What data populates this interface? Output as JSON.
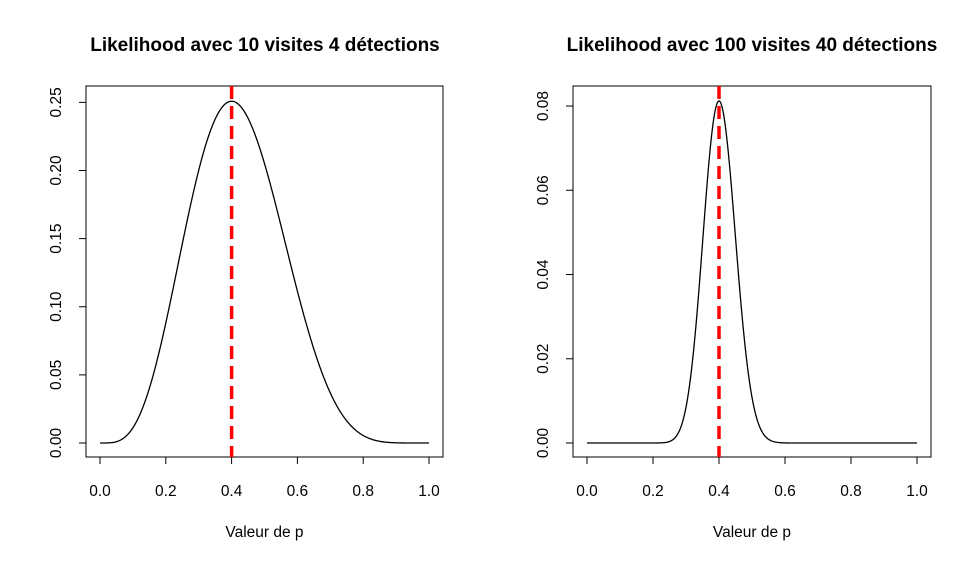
{
  "chart_data": [
    {
      "type": "line",
      "title": "Likelihood avec 10 visites 4 détections",
      "xlabel": "Valeur de p",
      "ylabel": "",
      "xlim": [
        0,
        1
      ],
      "ylim": [
        0,
        0.251
      ],
      "x_ticks": [
        "0.0",
        "0.2",
        "0.4",
        "0.6",
        "0.8",
        "1.0"
      ],
      "y_ticks": [
        "0.00",
        "0.05",
        "0.10",
        "0.15",
        "0.20",
        "0.25"
      ],
      "binomial": {
        "n": 10,
        "k": 4
      },
      "series": [
        {
          "color": "#000000",
          "x": [
            0.0,
            0.05,
            0.1,
            0.15,
            0.2,
            0.25,
            0.3,
            0.35,
            0.4,
            0.45,
            0.5,
            0.55,
            0.6,
            0.65,
            0.7,
            0.75,
            0.8,
            0.85,
            0.9,
            0.95,
            1.0
          ],
          "values": [
            0.0,
            0.001,
            0.011,
            0.04,
            0.088,
            0.146,
            0.2,
            0.238,
            0.251,
            0.238,
            0.205,
            0.16,
            0.111,
            0.069,
            0.037,
            0.016,
            0.006,
            0.001,
            0.0001,
            0.0,
            0.0
          ]
        }
      ],
      "annotations": [
        {
          "type": "vline",
          "x": 0.4,
          "color": "#ff0000",
          "style": "dashed"
        }
      ],
      "grid": false,
      "legend": "none"
    },
    {
      "type": "line",
      "title": "Likelihood avec 100 visites 40 détections",
      "xlabel": "Valeur de p",
      "ylabel": "",
      "xlim": [
        0,
        1
      ],
      "ylim": [
        0,
        0.0812
      ],
      "x_ticks": [
        "0.0",
        "0.2",
        "0.4",
        "0.6",
        "0.8",
        "1.0"
      ],
      "y_ticks": [
        "0.00",
        "0.02",
        "0.04",
        "0.06",
        "0.08"
      ],
      "binomial": {
        "n": 100,
        "k": 40
      },
      "series": [
        {
          "color": "#000000",
          "x": [
            0.0,
            0.2,
            0.25,
            0.3,
            0.33,
            0.35,
            0.37,
            0.4,
            0.43,
            0.45,
            0.47,
            0.5,
            0.55,
            0.6,
            0.8,
            1.0
          ],
          "values": [
            0.0,
            0.0,
            0.0008,
            0.01,
            0.03,
            0.0496,
            0.0676,
            0.0812,
            0.0676,
            0.0478,
            0.0281,
            0.0108,
            0.0008,
            0.0,
            0.0,
            0.0
          ]
        }
      ],
      "annotations": [
        {
          "type": "vline",
          "x": 0.4,
          "color": "#ff0000",
          "style": "dashed"
        }
      ],
      "grid": false,
      "legend": "none"
    }
  ]
}
